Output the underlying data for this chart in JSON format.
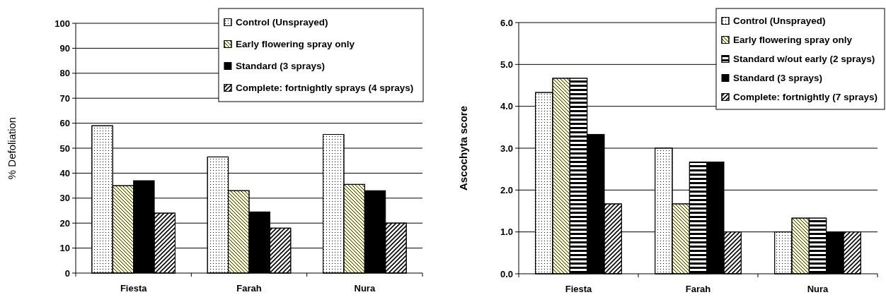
{
  "chart_data": [
    {
      "type": "bar",
      "ylabel": "% Defoliation",
      "categories": [
        "Fiesta",
        "Farah",
        "Nura"
      ],
      "series": [
        {
          "name": "Control (Unsprayed)",
          "color": "#ffffff",
          "values": [
            59,
            46.5,
            55.5
          ]
        },
        {
          "name": "Early flowering spray only",
          "color": "#ffffcc",
          "values": [
            35,
            33,
            35.5
          ]
        },
        {
          "name": "Standard (3 sprays)",
          "color": "#000000",
          "values": [
            37,
            24.5,
            33
          ]
        },
        {
          "name": "Complete:  fortnightly sprays (4 sprays)",
          "color": "#ffffff",
          "values": [
            24,
            18,
            20
          ]
        }
      ],
      "ylim": [
        0,
        100
      ],
      "yticks": [
        0,
        10,
        20,
        30,
        40,
        50,
        60,
        70,
        80,
        90,
        100
      ],
      "grid": "y",
      "legend": "top right"
    },
    {
      "type": "bar",
      "ylabel": "Ascochyta score",
      "categories": [
        "Fiesta",
        "Farah",
        "Nura"
      ],
      "series": [
        {
          "name": "Control (Unsprayed)",
          "color": "#ffffff",
          "values": [
            4.33,
            3.0,
            1.0
          ]
        },
        {
          "name": "Early flowering spray only",
          "color": "#ffffcc",
          "values": [
            4.67,
            1.67,
            1.33
          ]
        },
        {
          "name": "Standard w/out early (2 sprays)",
          "color": "#ffffff",
          "values": [
            4.67,
            2.67,
            1.33
          ]
        },
        {
          "name": "Standard (3 sprays)",
          "color": "#000000",
          "values": [
            3.33,
            2.67,
            1.0
          ]
        },
        {
          "name": "Complete: fortnightly (7 sprays)",
          "color": "#ffffff",
          "values": [
            1.67,
            1.0,
            1.0
          ]
        }
      ],
      "ylim": [
        0,
        6
      ],
      "yticks": [
        {
          "value": 0,
          "label": "0.0"
        },
        {
          "value": 1,
          "label": "1.0"
        },
        {
          "value": 2,
          "label": "2.0"
        },
        {
          "value": 3,
          "label": "3.0"
        },
        {
          "value": 4,
          "label": "4.0"
        },
        {
          "value": 5,
          "label": "5.0"
        },
        {
          "value": 6,
          "label": "6.0"
        }
      ],
      "grid": "y",
      "legend": "top right"
    }
  ]
}
